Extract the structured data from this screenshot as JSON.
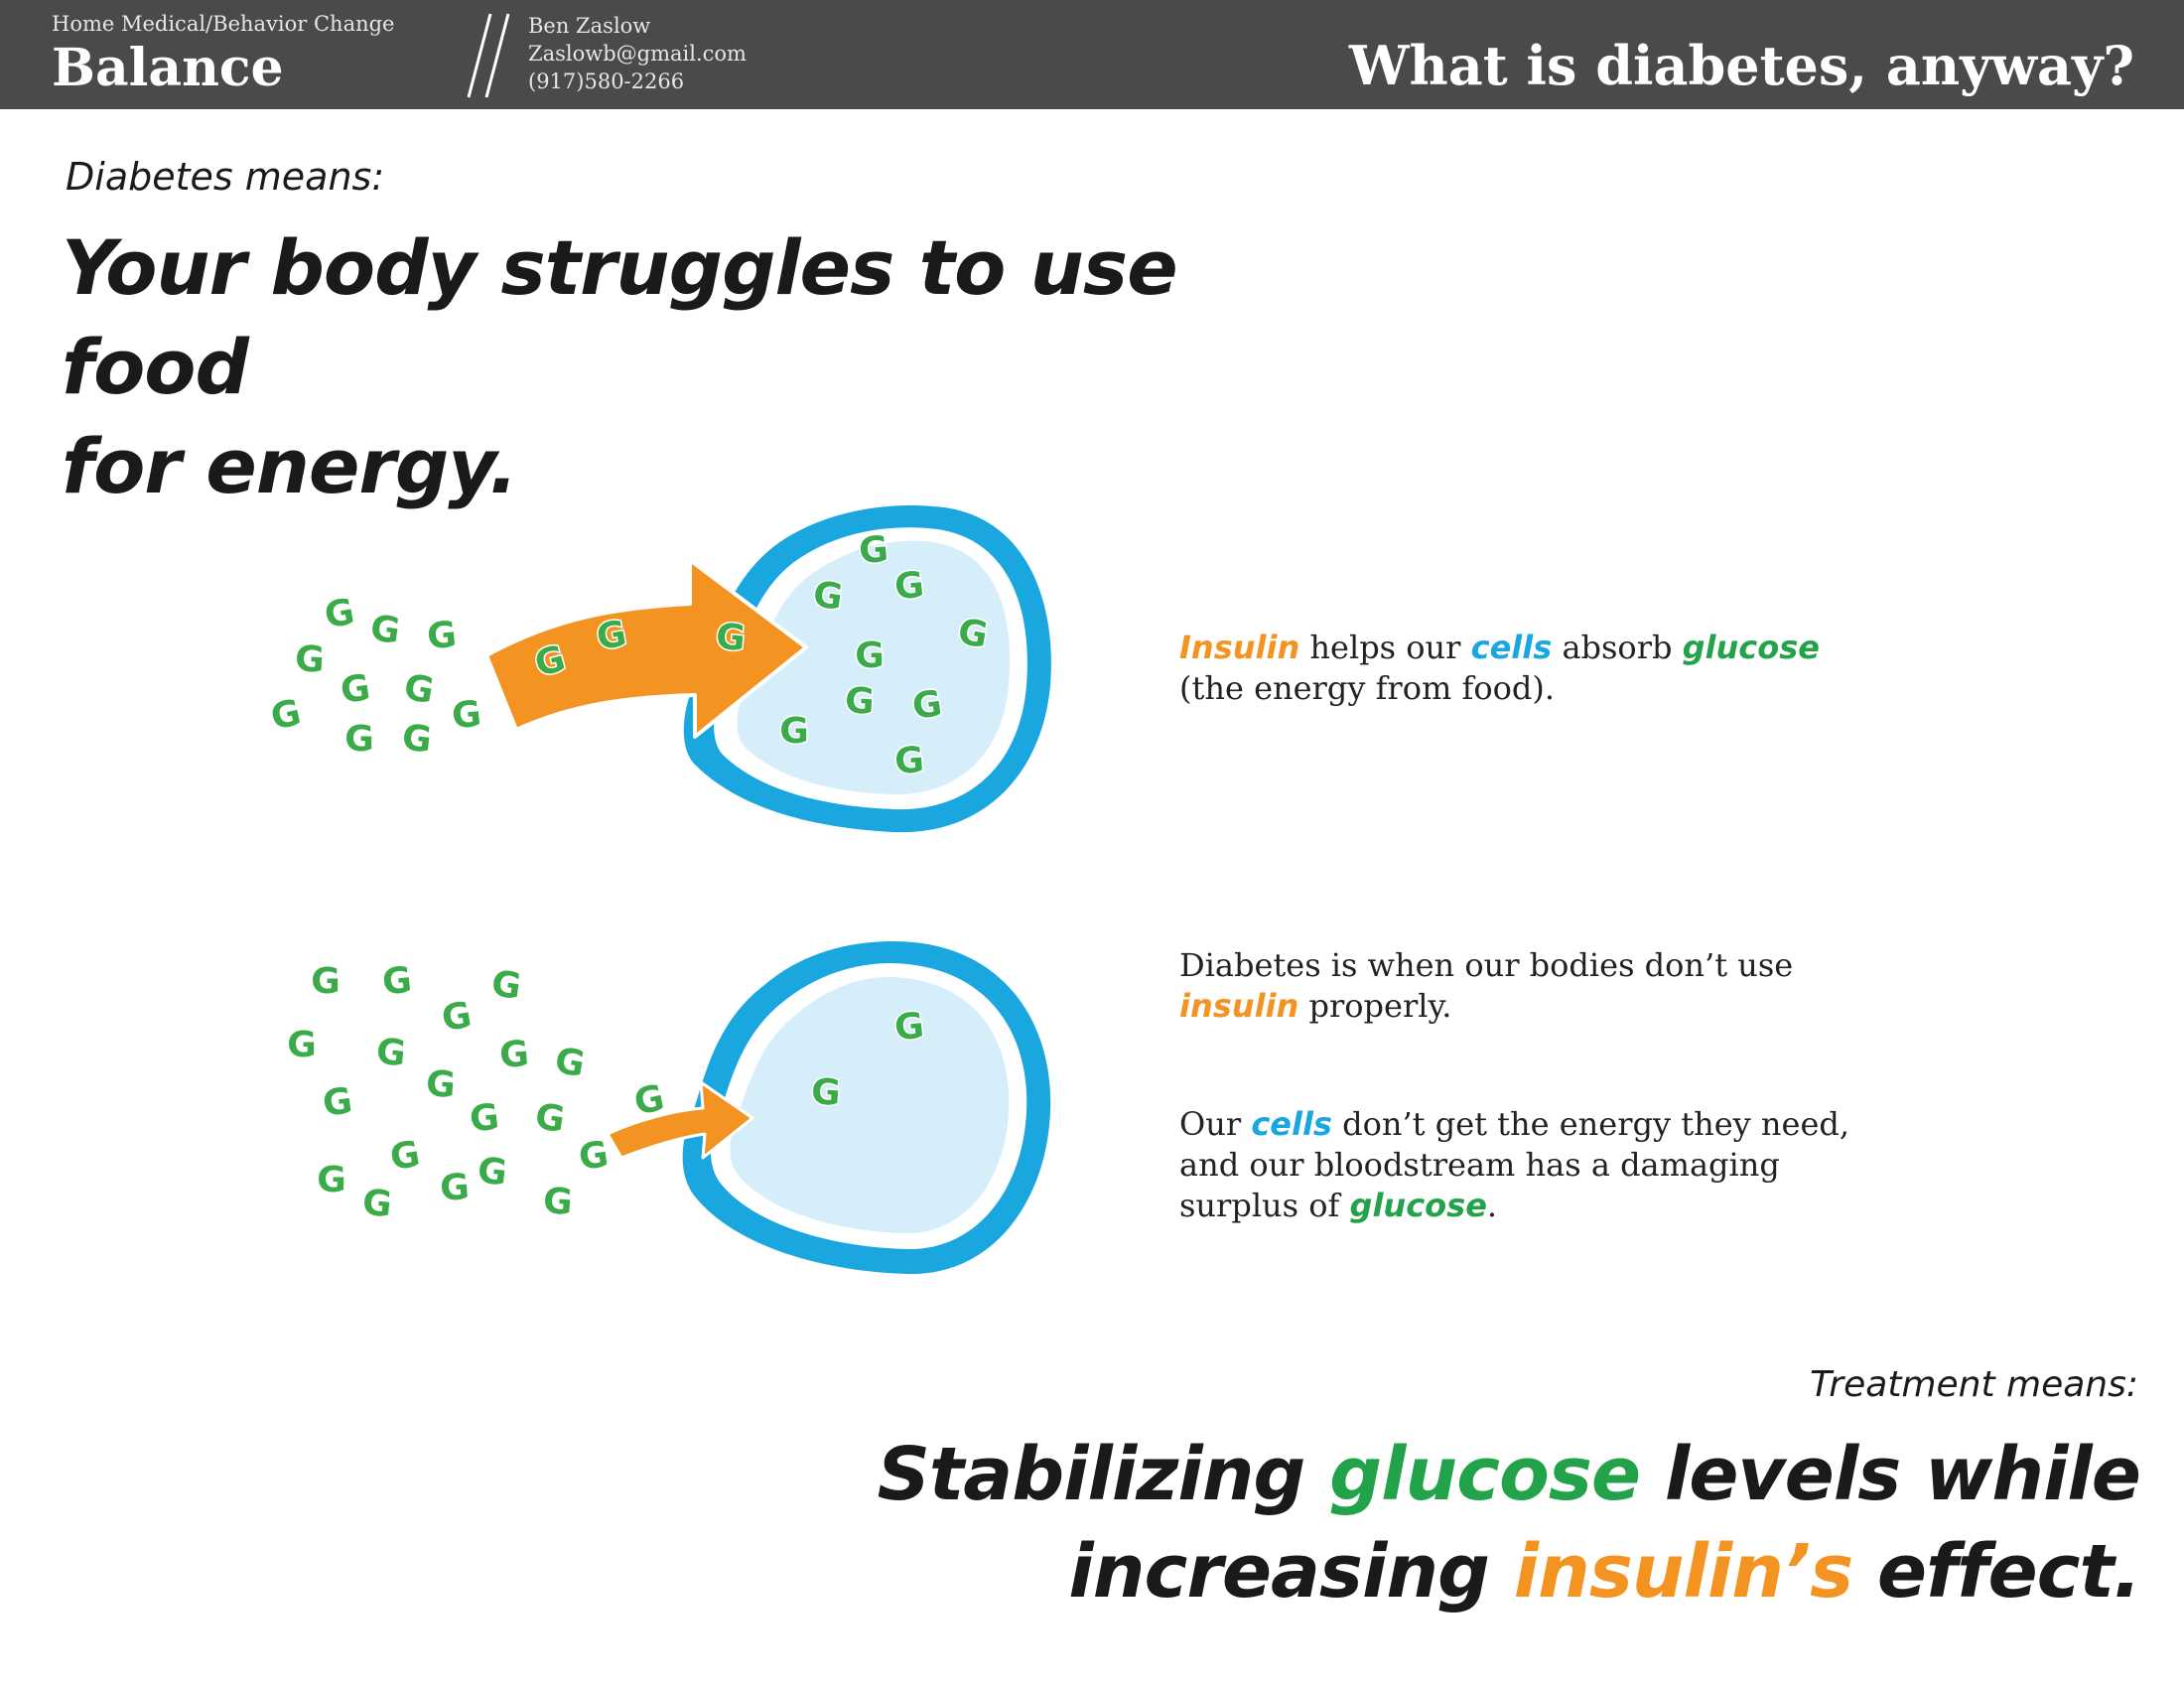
{
  "header": {
    "subtitle": "Home Medical/Behavior Change",
    "title": "Balance",
    "author": "Ben Zaslow",
    "email": "Zaslowb@gmail.com",
    "phone": "(917)580-2266",
    "page_title": "What is diabetes, anyway?"
  },
  "intro": {
    "label": "Diabetes means:",
    "headline_line1": "Your body struggles to use food",
    "headline_line2": "for energy."
  },
  "diagram": {
    "glucose_letter": "G",
    "colors": {
      "insulin": "#f39422",
      "cell": "#1aa7e0",
      "cell_fill": "#d6eefa",
      "glucose": "#3bab4a"
    }
  },
  "captions": {
    "c1": {
      "w1": "Insulin",
      "t1": " helps our ",
      "w2": "cells",
      "t2": " absorb ",
      "w3": "glucose",
      "line2": "(the energy from food)."
    },
    "c2": {
      "t1": "Diabetes is when our bodies don’t use",
      "w1": "insulin",
      "t2": " properly."
    },
    "c3": {
      "t1": "Our ",
      "w1": "cells",
      "t2": " don’t get the energy they need,",
      "line2": "and our bloodstream has a damaging",
      "t3": "surplus of ",
      "w2": "glucose",
      "t4": "."
    }
  },
  "treatment": {
    "label": "Treatment means:",
    "l1a": "Stabilizing ",
    "l1b": "glucose",
    "l1c": " levels while",
    "l2a": "increasing ",
    "l2b": "insulin’s",
    "l2c": " effect."
  }
}
